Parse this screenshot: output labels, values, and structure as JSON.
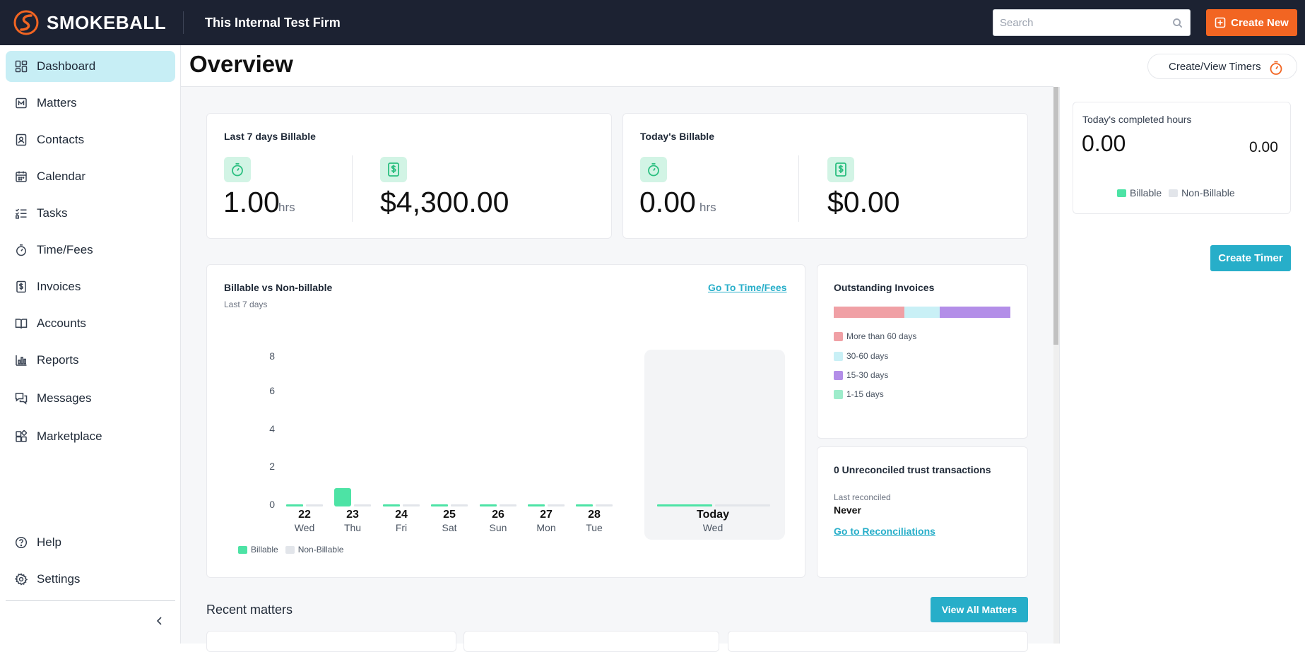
{
  "app": {
    "name": "SMOKEBALL",
    "firm": "This Internal Test Firm"
  },
  "search": {
    "placeholder": "Search",
    "value": ""
  },
  "create_new_label": "Create New",
  "sidebar": {
    "items": [
      {
        "label": "Dashboard",
        "icon": "dashboard-icon",
        "active": true
      },
      {
        "label": "Matters",
        "icon": "matters-icon"
      },
      {
        "label": "Contacts",
        "icon": "contacts-icon"
      },
      {
        "label": "Calendar",
        "icon": "calendar-icon"
      },
      {
        "label": "Tasks",
        "icon": "tasks-icon"
      },
      {
        "label": "Time/Fees",
        "icon": "stopwatch-icon"
      },
      {
        "label": "Invoices",
        "icon": "invoice-icon"
      },
      {
        "label": "Accounts",
        "icon": "book-icon"
      },
      {
        "label": "Reports",
        "icon": "bar-chart-icon"
      },
      {
        "label": "Messages",
        "icon": "chat-icon"
      },
      {
        "label": "Marketplace",
        "icon": "apps-icon"
      }
    ],
    "help_label": "Help",
    "settings_label": "Settings"
  },
  "header": {
    "title": "Overview",
    "timers_label": "Create/View Timers"
  },
  "last7": {
    "title": "Last 7 days Billable",
    "hours": "1.00",
    "hours_unit": "hrs",
    "amount": "$4,300.00"
  },
  "today": {
    "title": "Today's Billable",
    "hours": "0.00",
    "hours_unit": "hrs",
    "amount": "$0.00"
  },
  "billable_chart": {
    "title": "Billable vs Non-billable",
    "subtitle": "Last 7 days",
    "link": "Go To Time/Fees",
    "legend": {
      "billable": "Billable",
      "non_billable": "Non-Billable"
    },
    "days": [
      {
        "num": "22",
        "wd": "Wed"
      },
      {
        "num": "23",
        "wd": "Thu"
      },
      {
        "num": "24",
        "wd": "Fri"
      },
      {
        "num": "25",
        "wd": "Sat"
      },
      {
        "num": "26",
        "wd": "Sun"
      },
      {
        "num": "27",
        "wd": "Mon"
      },
      {
        "num": "28",
        "wd": "Tue"
      }
    ],
    "today": {
      "num": "Today",
      "wd": "Wed"
    }
  },
  "chart_data": {
    "type": "bar",
    "categories": [
      "22 Wed",
      "23 Thu",
      "24 Fri",
      "25 Sat",
      "26 Sun",
      "27 Mon",
      "28 Tue",
      "Today Wed"
    ],
    "series": [
      {
        "name": "Billable",
        "values": [
          0,
          1,
          0,
          0,
          0,
          0,
          0,
          0
        ]
      },
      {
        "name": "Non-Billable",
        "values": [
          0,
          0,
          0,
          0,
          0,
          0,
          0,
          0
        ]
      }
    ],
    "ylim": [
      0,
      8
    ],
    "yticks": [
      "8",
      "6",
      "4",
      "2",
      "0"
    ],
    "colors": {
      "billable": "#4de3a5",
      "non_billable": "#e2e5ea"
    }
  },
  "outstanding": {
    "title": "Outstanding Invoices",
    "segments": [
      {
        "label": "More than 60 days",
        "color": "#f0a0a5",
        "share": 0.4
      },
      {
        "label": "30-60 days",
        "color": "#c9f0f6",
        "share": 0.2
      },
      {
        "label": "15-30 days",
        "color": "#b38ee8",
        "share": 0.4
      },
      {
        "label": "1-15 days",
        "color": "#9eeccb",
        "share": 0
      }
    ]
  },
  "trust": {
    "title": "0 Unreconciled trust transactions",
    "last_label": "Last reconciled",
    "last_value": "Never",
    "link": "Go to Reconciliations"
  },
  "recent": {
    "title": "Recent matters",
    "button": "View All Matters"
  },
  "right": {
    "title": "Today's completed hours",
    "total": "0.00",
    "secondary": "0.00",
    "legend": {
      "billable": "Billable",
      "non_billable": "Non-Billable"
    },
    "button": "Create Timer"
  }
}
